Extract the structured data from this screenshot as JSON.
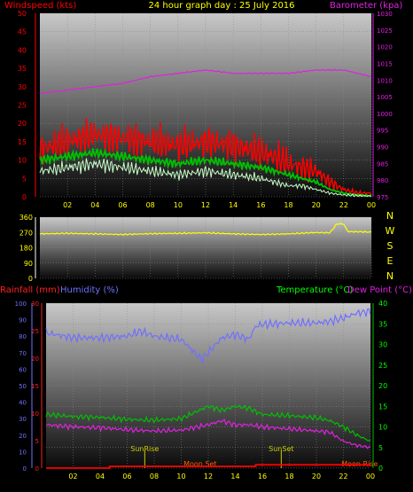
{
  "chart_data": [
    {
      "type": "line",
      "title": "24 hour graph day : 25 July 2016",
      "ylabel": "Windspeed (kts)",
      "y2label": "Barometer (kpa)",
      "x_ticks": [
        "02",
        "04",
        "06",
        "08",
        "10",
        "12",
        "14",
        "16",
        "18",
        "20",
        "22",
        "00"
      ],
      "ylim": [
        0,
        50
      ],
      "y_ticks": [
        "0",
        "5",
        "10",
        "15",
        "20",
        "25",
        "30",
        "35",
        "40",
        "45",
        "50"
      ],
      "y2lim": [
        975,
        1030
      ],
      "y2_ticks": [
        "975",
        "980",
        "985",
        "990",
        "995",
        "1000",
        "1005",
        "1010",
        "1015",
        "1020",
        "1025",
        "1030"
      ],
      "colors": {
        "barometer": "#e020e0",
        "gust": "#ff0000",
        "average": "#00c000",
        "speed": "#c8ffc8",
        "ylabel": "#ff0000",
        "y2label": "#e020e0",
        "title": "#ffff00"
      },
      "series": [
        {
          "key": "barometer",
          "axis": "right",
          "hours": [
            0,
            2,
            4,
            6,
            8,
            10,
            12,
            14,
            16,
            18,
            20,
            22,
            24
          ],
          "values": [
            1006,
            1007,
            1008,
            1009,
            1011,
            1012,
            1013,
            1012,
            1012,
            1012,
            1013,
            1013,
            1011
          ]
        },
        {
          "key": "gust",
          "axis": "left",
          "hours": [
            0,
            2,
            4,
            6,
            8,
            10,
            12,
            14,
            16,
            17,
            18,
            19,
            20,
            21,
            22,
            23,
            24
          ],
          "values": [
            13,
            15,
            17,
            16,
            15,
            14,
            15,
            14,
            12,
            11,
            9,
            8,
            7,
            4,
            2,
            1,
            1
          ]
        },
        {
          "key": "average",
          "axis": "left",
          "hours": [
            0,
            2,
            4,
            6,
            8,
            10,
            12,
            14,
            16,
            17,
            18,
            19,
            20,
            21,
            22,
            23,
            24
          ],
          "values": [
            10,
            11,
            12,
            11,
            10,
            9,
            10,
            9,
            8,
            7,
            6,
            5,
            4,
            2,
            1,
            0.5,
            0.3
          ]
        },
        {
          "key": "speed",
          "axis": "left",
          "hours": [
            0,
            2,
            4,
            6,
            8,
            10,
            12,
            14,
            16,
            17,
            18,
            19,
            20,
            21,
            22,
            23,
            24
          ],
          "values": [
            7,
            8,
            9,
            8,
            7,
            6,
            7,
            6,
            5,
            4,
            3,
            3,
            2,
            1,
            0.5,
            0.3,
            0.2
          ]
        }
      ]
    },
    {
      "type": "line",
      "y_ticks": [
        "0",
        "90",
        "180",
        "270",
        "360"
      ],
      "ylim": [
        0,
        360
      ],
      "compass_labels": [
        "N",
        "W",
        "S",
        "E",
        "N"
      ],
      "colors": {
        "direction": "#ffff00",
        "compass": "#ffff00"
      },
      "series": [
        {
          "key": "direction",
          "hours": [
            0,
            2,
            4,
            6,
            8,
            10,
            12,
            14,
            16,
            18,
            20,
            21,
            21.5,
            22,
            22.3,
            23,
            24
          ],
          "values": [
            262,
            265,
            262,
            258,
            263,
            265,
            268,
            262,
            258,
            262,
            270,
            268,
            320,
            320,
            275,
            275,
            272
          ]
        }
      ]
    },
    {
      "type": "line",
      "left_label_1": "Rainfall (mm)",
      "left_label_2": "Humidity (%)",
      "right_label_1": "Temperature (°C)",
      "right_label_2": "Dew Point (°C)",
      "humidity_ticks": [
        "0",
        "10",
        "20",
        "30",
        "40",
        "50",
        "60",
        "70",
        "80",
        "90",
        "100"
      ],
      "humidity_lim": [
        0,
        100
      ],
      "rain_ticks": [
        "0",
        "5",
        "10",
        "15",
        "20",
        "25",
        "30"
      ],
      "rain_lim": [
        0,
        30
      ],
      "temp_ticks": [
        "0",
        "5",
        "10",
        "15",
        "20",
        "25",
        "30",
        "35",
        "40"
      ],
      "temp_lim": [
        0,
        40
      ],
      "colors": {
        "humidity": "#7070ff",
        "temperature": "#00c000",
        "dewpoint": "#e020e0",
        "rainfall": "#ff0000",
        "rain_label": "#ff2020",
        "hum_label": "#7070ff",
        "temp_label": "#00ff00",
        "dew_label": "#e020e0",
        "sun": "#cccc00",
        "moon": "#ff6000"
      },
      "series": [
        {
          "key": "humidity",
          "axis": "humidity",
          "hours": [
            0,
            2,
            4,
            6,
            7,
            8,
            10,
            11,
            11.5,
            12,
            13,
            14,
            15,
            15.5,
            16,
            18,
            20,
            21,
            22,
            23,
            24
          ],
          "values": [
            82,
            79,
            79,
            80,
            83,
            80,
            78,
            70,
            66,
            70,
            79,
            81,
            78,
            86,
            87,
            88,
            88,
            89,
            91,
            94,
            95
          ]
        },
        {
          "key": "temperature",
          "axis": "temp",
          "hours": [
            0,
            2,
            4,
            6,
            8,
            10,
            11,
            12,
            13,
            14,
            15,
            16,
            18,
            20,
            21,
            22,
            23,
            24
          ],
          "values": [
            13,
            12.5,
            12.3,
            11.8,
            11.6,
            12,
            13.5,
            15,
            14,
            15,
            14.5,
            13,
            12.7,
            12.2,
            11.5,
            10,
            8,
            6.5
          ]
        },
        {
          "key": "dewpoint",
          "axis": "temp",
          "hours": [
            0,
            2,
            4,
            6,
            8,
            10,
            12,
            13,
            14,
            15,
            16,
            18,
            20,
            21,
            22,
            23,
            24
          ],
          "values": [
            10.5,
            10,
            9.8,
            9.3,
            9,
            9.2,
            10.5,
            11.5,
            10.5,
            10.5,
            10,
            9.5,
            9,
            8.7,
            6.5,
            5.5,
            5
          ]
        },
        {
          "key": "rainfall",
          "axis": "rain",
          "hours": [
            0,
            4.7,
            4.7,
            15.5,
            15.5,
            24
          ],
          "values": [
            0,
            0,
            0.3,
            0.3,
            0.6,
            0.6
          ]
        }
      ],
      "annotations": [
        {
          "key": "sunrise",
          "label": "SunRise",
          "hour": 7.3
        },
        {
          "key": "sunset",
          "label": "SunSet",
          "hour": 17.4
        },
        {
          "key": "moonset",
          "label": "Moon Set",
          "hour": 11.4
        },
        {
          "key": "moonrise",
          "label": "Moon Rise",
          "hour": 23.2
        }
      ]
    }
  ]
}
